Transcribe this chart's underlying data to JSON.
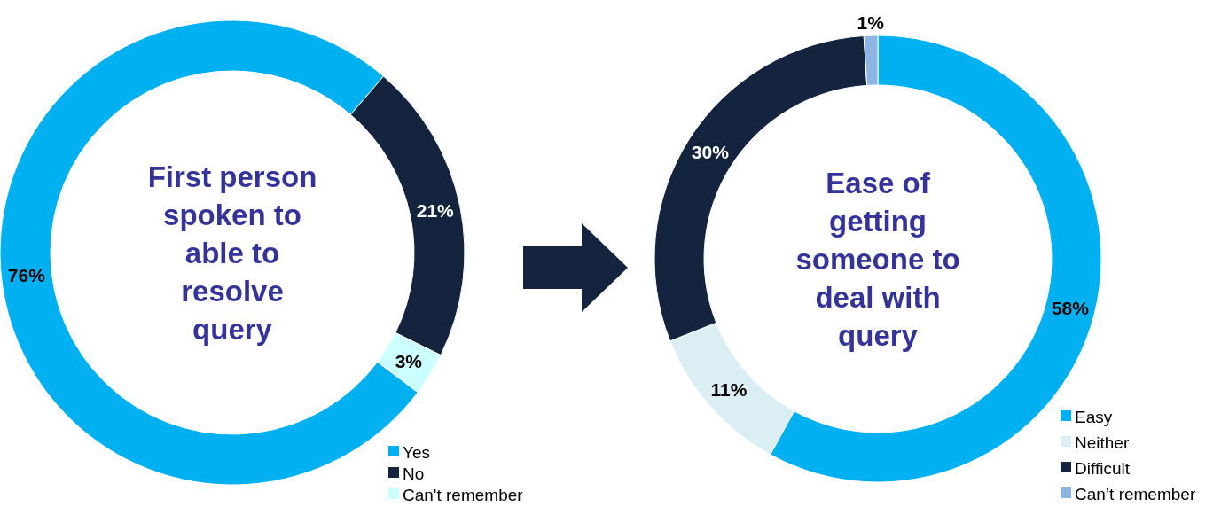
{
  "chart_data": [
    {
      "type": "donut",
      "title": "First person spoken to able to resolve query",
      "categories": [
        "Yes",
        "No",
        "Can't remember"
      ],
      "values": [
        76,
        21,
        3
      ],
      "colors": [
        "#00b0f0",
        "#14243f",
        "#ccffff"
      ],
      "value_labels": [
        "76%",
        "21%",
        "3%"
      ],
      "legend": "bottom right"
    },
    {
      "type": "donut",
      "title": "Ease of getting someone to deal with query",
      "categories": [
        "Easy",
        "Neither",
        "Difficult",
        "Can’t remember"
      ],
      "values": [
        58,
        11,
        30,
        1
      ],
      "colors": [
        "#00b0f0",
        "#daeef3",
        "#14243f",
        "#8db4e2"
      ],
      "value_labels": [
        "58%",
        "11%",
        "30%",
        "1%"
      ],
      "legend": "bottom right"
    }
  ]
}
